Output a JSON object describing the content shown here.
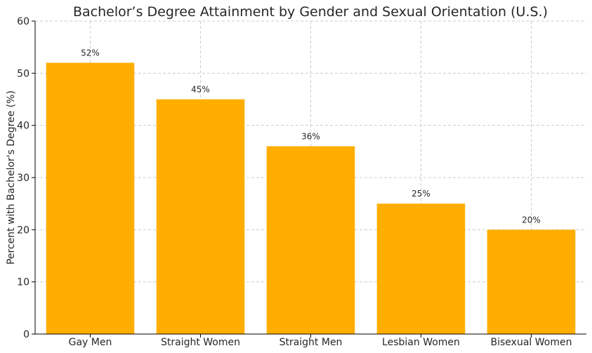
{
  "chart_data": {
    "type": "bar",
    "title": "Bachelor’s Degree Attainment by Gender and Sexual Orientation (U.S.)",
    "xlabel": "",
    "ylabel": "Percent with Bachelor's Degree (%)",
    "categories": [
      "Gay Men",
      "Straight Women",
      "Straight Men",
      "Lesbian Women",
      "Bisexual Women"
    ],
    "values": [
      52,
      45,
      36,
      25,
      20
    ],
    "data_labels": [
      "52%",
      "45%",
      "36%",
      "25%",
      "20%"
    ],
    "ylim": [
      0,
      60
    ],
    "yticks": [
      0,
      10,
      20,
      30,
      40,
      50,
      60
    ],
    "grid": true,
    "bar_color": "#FFAE00"
  }
}
